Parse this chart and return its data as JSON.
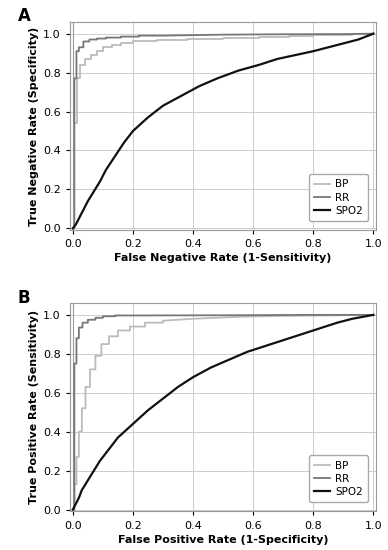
{
  "panel_A": {
    "title": "A",
    "xlabel": "False Negative Rate (1-Sensitivity)",
    "ylabel": "True Negative Rate (Specificity)",
    "BP_color": "#bbbbbb",
    "RR_color": "#777777",
    "SPO2_color": "#111111"
  },
  "panel_B": {
    "title": "B",
    "xlabel": "False Positive Rate (1-Specificity)",
    "ylabel": "True Positive Rate (Sensitivity)",
    "BP_color": "#bbbbbb",
    "RR_color": "#777777",
    "SPO2_color": "#111111"
  },
  "background_color": "#ffffff",
  "grid_color": "#cccccc",
  "tick_fontsize": 8,
  "label_fontsize": 8,
  "title_fontsize": 12,
  "legend_fontsize": 7.5,
  "linewidth_light": 1.3,
  "linewidth_dark": 1.3,
  "linewidth_black": 1.6
}
